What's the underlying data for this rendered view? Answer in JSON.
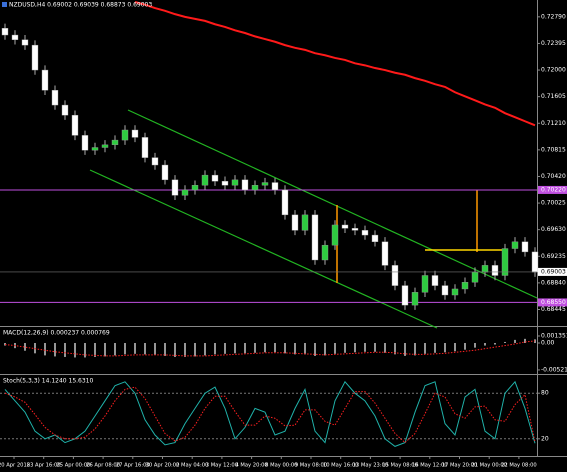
{
  "chart_data": [
    {
      "type": "candlestick",
      "title": "NZDUSD,H4 0.69002 0.69039 0.68873 0.69003",
      "ylim": [
        0.682,
        0.7304
      ],
      "yticks": [
        {
          "value": 0.7279,
          "label": "0.72790"
        },
        0.72395,
        {
          "value": 0.72,
          "label": "0.72000"
        },
        0.71605,
        {
          "value": 0.7121,
          "label": "0.71210"
        },
        0.70815,
        {
          "value": 0.7042,
          "label": "0.70420"
        },
        0.70025,
        {
          "value": 0.6963,
          "label": "0.69630"
        },
        0.69235,
        {
          "value": 0.6884,
          "label": "0.68840"
        },
        0.68445
      ],
      "up_color": "#2ecc40",
      "down_color": "#ffffff",
      "open": [
        0.7262,
        0.7252,
        0.7245,
        0.7237,
        0.72,
        0.717,
        0.7148,
        0.7133,
        0.7103,
        0.7081,
        0.7085,
        0.7089,
        0.7096,
        0.7111,
        0.71,
        0.707,
        0.7059,
        0.7037,
        0.7014,
        0.7022,
        0.7029,
        0.7044,
        0.7035,
        0.7029,
        0.7037,
        0.7022,
        0.7029,
        0.7033,
        0.7022,
        0.6985,
        0.6962,
        0.6985,
        0.6918,
        0.694,
        0.697,
        0.6965,
        0.6962,
        0.6955,
        0.6945,
        0.691,
        0.688,
        0.6851,
        0.687,
        0.6895,
        0.688,
        0.6866,
        0.6875,
        0.6885,
        0.69,
        0.691,
        0.6895,
        0.6935,
        0.6945,
        0.693
      ],
      "high": [
        0.7269,
        0.7259,
        0.7252,
        0.7244,
        0.7207,
        0.7177,
        0.7155,
        0.714,
        0.711,
        0.7092,
        0.7096,
        0.7103,
        0.7118,
        0.7118,
        0.7107,
        0.7077,
        0.7066,
        0.7044,
        0.7029,
        0.7036,
        0.7051,
        0.7051,
        0.7042,
        0.7044,
        0.7044,
        0.7036,
        0.704,
        0.704,
        0.7029,
        0.6992,
        0.6992,
        0.6992,
        0.6947,
        0.6977,
        0.6977,
        0.6972,
        0.6969,
        0.6962,
        0.6952,
        0.6917,
        0.6887,
        0.6877,
        0.6902,
        0.6902,
        0.6887,
        0.6882,
        0.6892,
        0.6907,
        0.6917,
        0.6917,
        0.6942,
        0.6952,
        0.6952,
        0.6937
      ],
      "low": [
        0.7245,
        0.7238,
        0.723,
        0.7193,
        0.7163,
        0.7141,
        0.7126,
        0.7096,
        0.7074,
        0.7074,
        0.7078,
        0.7082,
        0.7089,
        0.7093,
        0.7063,
        0.7052,
        0.703,
        0.7007,
        0.7007,
        0.7015,
        0.7022,
        0.7028,
        0.7022,
        0.7022,
        0.7015,
        0.7015,
        0.7022,
        0.7015,
        0.6978,
        0.6955,
        0.6955,
        0.6911,
        0.6911,
        0.6933,
        0.6958,
        0.6955,
        0.6948,
        0.6938,
        0.6903,
        0.6873,
        0.6844,
        0.6844,
        0.6863,
        0.6873,
        0.6859,
        0.6859,
        0.6868,
        0.6878,
        0.6893,
        0.6888,
        0.6888,
        0.6928,
        0.6923,
        0.6893
      ],
      "close": [
        0.7252,
        0.7245,
        0.7237,
        0.72,
        0.717,
        0.7148,
        0.7133,
        0.7103,
        0.7081,
        0.7085,
        0.7089,
        0.7096,
        0.7111,
        0.71,
        0.707,
        0.7059,
        0.7037,
        0.7014,
        0.7022,
        0.7029,
        0.7044,
        0.7035,
        0.7029,
        0.7037,
        0.7022,
        0.7029,
        0.7033,
        0.7022,
        0.6985,
        0.6962,
        0.6985,
        0.6918,
        0.694,
        0.697,
        0.6965,
        0.6962,
        0.6955,
        0.6945,
        0.691,
        0.688,
        0.6851,
        0.687,
        0.6895,
        0.688,
        0.6866,
        0.6875,
        0.6885,
        0.69,
        0.691,
        0.6895,
        0.6935,
        0.6945,
        0.693,
        0.69
      ],
      "moving_average": {
        "color": "#ff1a1a",
        "values": [
          null,
          null,
          null,
          null,
          null,
          null,
          null,
          null,
          null,
          null,
          null,
          null,
          null,
          0.7301,
          0.7297,
          0.7292,
          0.7288,
          0.7283,
          0.7279,
          0.7276,
          0.7273,
          0.7268,
          0.7264,
          0.7259,
          0.7255,
          0.725,
          0.7246,
          0.7242,
          0.7237,
          0.7233,
          0.723,
          0.7225,
          0.7222,
          0.7218,
          0.7215,
          0.721,
          0.7207,
          0.7203,
          0.72,
          0.7196,
          0.7193,
          0.7188,
          0.7184,
          0.7179,
          0.7175,
          0.7167,
          0.7161,
          0.7155,
          0.7149,
          0.7144,
          0.7136,
          0.713,
          0.7124,
          0.7118
        ]
      },
      "levels": [
        {
          "value": 0.7022,
          "label": "0.70220",
          "color": "#c050e0"
        },
        {
          "value": 0.6855,
          "label": "0.68550",
          "color": "#c050e0"
        }
      ],
      "current_price": 0.69003
    },
    {
      "type": "macd",
      "title": "MACD(12,26,9) 0.000237 0.000769",
      "ylim": [
        -0.006,
        0.0029
      ],
      "yticks": [
        0.001351,
        {
          "value": 0,
          "label": "0.00"
        },
        -0.005213
      ],
      "series": [
        {
          "color": "#c8c8c8",
          "values": [
            -0.0005,
            -0.001,
            -0.0015,
            -0.002,
            -0.0024,
            -0.0026,
            -0.0027,
            -0.0028,
            -0.0028,
            -0.0027,
            -0.0026,
            -0.0024,
            -0.0022,
            -0.0021,
            -0.0022,
            -0.0023,
            -0.0025,
            -0.0027,
            -0.0027,
            -0.0026,
            -0.0024,
            -0.0022,
            -0.0021,
            -0.002,
            -0.002,
            -0.0019,
            -0.0018,
            -0.0018,
            -0.002,
            -0.0022,
            -0.0022,
            -0.0025,
            -0.0024,
            -0.0021,
            -0.0019,
            -0.0018,
            -0.0017,
            -0.0017,
            -0.0019,
            -0.0022,
            -0.0025,
            -0.0024,
            -0.0021,
            -0.0019,
            -0.0018,
            -0.0016,
            -0.0013,
            -0.0009,
            -0.0005,
            -0.0003,
            0.0002,
            0.0006,
            0.0008,
            0.0007
          ]
        },
        {
          "color": "#ff2020",
          "values": [
            -0.0003,
            -0.0005,
            -0.0008,
            -0.0011,
            -0.0014,
            -0.0017,
            -0.0019,
            -0.0021,
            -0.0023,
            -0.0024,
            -0.0025,
            -0.0025,
            -0.0024,
            -0.0023,
            -0.0023,
            -0.0023,
            -0.0023,
            -0.0024,
            -0.0025,
            -0.0025,
            -0.0025,
            -0.0024,
            -0.0023,
            -0.0022,
            -0.0021,
            -0.002,
            -0.0019,
            -0.0019,
            -0.0019,
            -0.002,
            -0.0021,
            -0.0022,
            -0.0023,
            -0.0022,
            -0.0021,
            -0.002,
            -0.0019,
            -0.0018,
            -0.0018,
            -0.0019,
            -0.0021,
            -0.0022,
            -0.0022,
            -0.0021,
            -0.002,
            -0.0018,
            -0.0016,
            -0.0014,
            -0.0011,
            -0.0008,
            -0.0005,
            -0.0002,
            0.0002,
            0.0004
          ]
        }
      ]
    },
    {
      "type": "stochastic",
      "title": "Stoch(5,3,3) 14.1240 15.6310",
      "ylim": [
        0,
        100
      ],
      "yticks": [
        80,
        20
      ],
      "series": [
        {
          "color": "#20b2aa",
          "values": [
            85,
            70,
            55,
            30,
            20,
            25,
            15,
            20,
            30,
            50,
            70,
            90,
            95,
            80,
            45,
            25,
            12,
            15,
            40,
            60,
            80,
            88,
            60,
            20,
            35,
            60,
            55,
            25,
            30,
            60,
            85,
            30,
            15,
            70,
            95,
            80,
            70,
            50,
            20,
            10,
            15,
            55,
            90,
            95,
            40,
            25,
            75,
            85,
            30,
            20,
            80,
            95,
            60,
            14.124
          ]
        },
        {
          "color": "#ff2020",
          "values": [
            80,
            75,
            68,
            52,
            35,
            25,
            20,
            20,
            22,
            33,
            50,
            70,
            85,
            88,
            73,
            50,
            27,
            17,
            22,
            38,
            60,
            76,
            76,
            56,
            38,
            38,
            50,
            47,
            37,
            38,
            58,
            58,
            43,
            38,
            60,
            82,
            82,
            67,
            47,
            27,
            15,
            27,
            53,
            80,
            75,
            53,
            47,
            62,
            63,
            45,
            43,
            65,
            78,
            15.631
          ]
        }
      ],
      "time_labels": [
        "20 Apr 2018",
        "23 Apr 16:00",
        "25 Apr 00:00",
        "26 Apr 08:00",
        "27 Apr 16:00",
        "30 Apr 20:00",
        "2 May 04:00",
        "3 May 12:00",
        "4 May 20:00",
        "8 May 00:00",
        "9 May 08:00",
        "10 May 16:00",
        "13 May 23:00",
        "15 May 08:00",
        "16 May 12:00",
        "17 May 20:00",
        "21 May 00:00",
        "22 May 08:00"
      ]
    }
  ]
}
